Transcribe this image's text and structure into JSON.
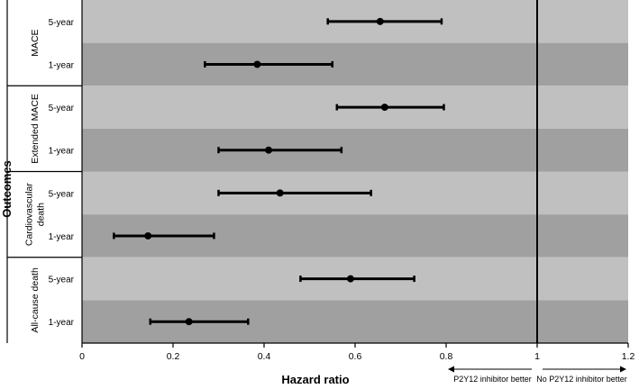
{
  "chart_data": {
    "type": "forest",
    "xlabel": "Hazard ratio",
    "ylabel": "Outcomes",
    "xlim": [
      0,
      1.2
    ],
    "x_ticks": [
      {
        "value": 0,
        "label": "0"
      },
      {
        "value": 0.2,
        "label": "0.2"
      },
      {
        "value": 0.4,
        "label": "0.4"
      },
      {
        "value": 0.6,
        "label": "0.6"
      },
      {
        "value": 0.8,
        "label": "0.8"
      },
      {
        "value": 1.0,
        "label": "1"
      },
      {
        "value": 1.2,
        "label": "1.2"
      }
    ],
    "reference_line": 1.0,
    "direction_labels": {
      "left": "P2Y12 inhibitor better",
      "right": "No P2Y12 inhibitor better"
    },
    "colors": {
      "row_light": "#c0c0c0",
      "row_dark": "#a0a0a0",
      "marker": "#000000"
    },
    "groups": [
      {
        "name_lines": [
          "MACE"
        ],
        "rows": [
          {
            "label": "5-year",
            "hr": 0.655,
            "lower": 0.54,
            "upper": 0.79
          },
          {
            "label": "1-year",
            "hr": 0.385,
            "lower": 0.27,
            "upper": 0.55
          }
        ]
      },
      {
        "name_lines": [
          "Extended MACE"
        ],
        "rows": [
          {
            "label": "5-year",
            "hr": 0.665,
            "lower": 0.56,
            "upper": 0.795
          },
          {
            "label": "1-year",
            "hr": 0.41,
            "lower": 0.3,
            "upper": 0.57
          }
        ]
      },
      {
        "name_lines": [
          "Cardiovascular",
          "death"
        ],
        "rows": [
          {
            "label": "5-year",
            "hr": 0.435,
            "lower": 0.3,
            "upper": 0.635
          },
          {
            "label": "1-year",
            "hr": 0.145,
            "lower": 0.07,
            "upper": 0.29
          }
        ]
      },
      {
        "name_lines": [
          "All-cause death"
        ],
        "rows": [
          {
            "label": "5-year",
            "hr": 0.59,
            "lower": 0.48,
            "upper": 0.73
          },
          {
            "label": "1-year",
            "hr": 0.235,
            "lower": 0.15,
            "upper": 0.365
          }
        ]
      }
    ]
  }
}
